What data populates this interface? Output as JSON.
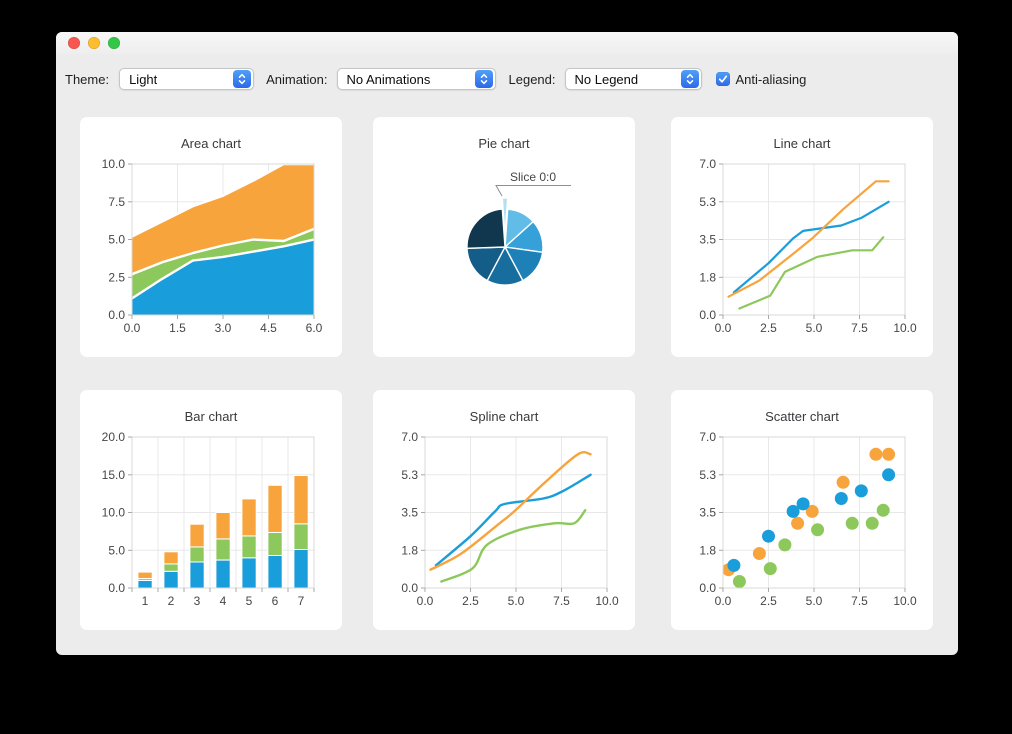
{
  "window": {
    "controls": [
      {
        "name": "close",
        "color": "#f8574f"
      },
      {
        "name": "minimize",
        "color": "#fcbd2f"
      },
      {
        "name": "zoom",
        "color": "#33c748"
      }
    ]
  },
  "toolbar": {
    "theme": {
      "label": "Theme:",
      "value": "Light"
    },
    "animation": {
      "label": "Animation:",
      "value": "No Animations"
    },
    "legend": {
      "label": "Legend:",
      "value": "No Legend"
    },
    "antialiasing": {
      "label": "Anti-aliasing",
      "checked": true
    }
  },
  "palette": {
    "blue": "#1a9ddb",
    "green": "#8dc85c",
    "orange": "#f8a43d",
    "grid": "#e8e8e8",
    "axis_border": "#d9d9d9",
    "tick_mark": "#a9a9a9",
    "label": "#46464a",
    "accent": "#3f87f5"
  },
  "chart_data": [
    {
      "type": "area",
      "title": "Area chart",
      "xlim": [
        0,
        6
      ],
      "ylim": [
        0,
        10
      ],
      "xtick_vals": [
        0,
        1.5,
        3,
        4.5,
        6
      ],
      "xtick_labels": [
        "0.0",
        "1.5",
        "3.0",
        "4.5",
        "6.0"
      ],
      "ytick_vals": [
        0,
        2.5,
        5,
        7.5,
        10
      ],
      "ytick_labels": [
        "0.0",
        "2.5",
        "5.0",
        "7.5",
        "10.0"
      ],
      "x": [
        0,
        1,
        2,
        3,
        4,
        5,
        6
      ],
      "stacked_tops": [
        {
          "name": "blue",
          "values": [
            1.1,
            2.4,
            3.6,
            3.85,
            4.2,
            4.55,
            5.0
          ]
        },
        {
          "name": "green",
          "values": [
            2.7,
            3.5,
            4.1,
            4.6,
            5.0,
            4.9,
            5.7
          ]
        },
        {
          "name": "orange",
          "values": [
            5.2,
            6.2,
            7.2,
            7.9,
            8.9,
            10.0,
            10.0
          ]
        }
      ]
    },
    {
      "type": "pie",
      "title": "Pie chart",
      "label": "Slice 0:0",
      "slices": [
        {
          "start": -4,
          "span": 8,
          "color": "#b7ddf4",
          "exploded": true,
          "label": "Slice 0:0"
        },
        {
          "start": 4,
          "span": 44,
          "color": "#62bce8"
        },
        {
          "start": 48,
          "span": 50,
          "color": "#35a1d8"
        },
        {
          "start": 98,
          "span": 54,
          "color": "#1d80b7"
        },
        {
          "start": 152,
          "span": 56,
          "color": "#176e9e"
        },
        {
          "start": 208,
          "span": 60,
          "color": "#135d88"
        },
        {
          "start": 268,
          "span": 88,
          "color": "#11374f"
        }
      ]
    },
    {
      "type": "line",
      "title": "Line chart",
      "xlim": [
        0,
        10
      ],
      "ylim": [
        0,
        7
      ],
      "xtick_vals": [
        0,
        2.5,
        5,
        7.5,
        10
      ],
      "xtick_labels": [
        "0.0",
        "2.5",
        "5.0",
        "7.5",
        "10.0"
      ],
      "ytick_vals": [
        0,
        1.75,
        3.5,
        5.25,
        7
      ],
      "ytick_labels": [
        "0.0",
        "1.8",
        "3.5",
        "5.3",
        "7.0"
      ],
      "series": [
        {
          "name": "green",
          "points": [
            [
              0.9,
              0.3
            ],
            [
              2.6,
              0.9
            ],
            [
              3.4,
              2.0
            ],
            [
              5.2,
              2.7
            ],
            [
              7.1,
              3.0
            ],
            [
              8.2,
              3.0
            ],
            [
              8.8,
              3.6
            ]
          ]
        },
        {
          "name": "blue",
          "points": [
            [
              0.6,
              1.05
            ],
            [
              2.5,
              2.4
            ],
            [
              3.85,
              3.55
            ],
            [
              4.4,
              3.9
            ],
            [
              6.5,
              4.15
            ],
            [
              7.6,
              4.5
            ],
            [
              9.1,
              5.25
            ]
          ]
        },
        {
          "name": "orange",
          "points": [
            [
              0.3,
              0.85
            ],
            [
              2.0,
              1.6
            ],
            [
              4.1,
              3.0
            ],
            [
              4.9,
              3.55
            ],
            [
              6.6,
              4.9
            ],
            [
              8.4,
              6.2
            ],
            [
              9.1,
              6.2
            ]
          ]
        }
      ]
    },
    {
      "type": "bar",
      "title": "Bar chart",
      "categories": [
        "1",
        "2",
        "3",
        "4",
        "5",
        "6",
        "7"
      ],
      "ylim": [
        0,
        20
      ],
      "ytick_vals": [
        0,
        5,
        10,
        15,
        20
      ],
      "ytick_labels": [
        "0.0",
        "5.0",
        "10.0",
        "15.0",
        "20.0"
      ],
      "series": [
        {
          "name": "blue",
          "values": [
            1.0,
            2.2,
            3.45,
            3.7,
            4.0,
            4.3,
            5.1
          ]
        },
        {
          "name": "green",
          "values": [
            0.25,
            1.0,
            2.0,
            2.8,
            2.9,
            3.05,
            3.4
          ]
        },
        {
          "name": "orange",
          "values": [
            0.85,
            1.6,
            3.0,
            3.5,
            4.9,
            6.25,
            6.4
          ]
        }
      ]
    },
    {
      "type": "spline",
      "title": "Spline chart",
      "xlim": [
        0,
        10
      ],
      "ylim": [
        0,
        7
      ],
      "xtick_vals": [
        0,
        2.5,
        5,
        7.5,
        10
      ],
      "xtick_labels": [
        "0.0",
        "2.5",
        "5.0",
        "7.5",
        "10.0"
      ],
      "ytick_vals": [
        0,
        1.75,
        3.5,
        5.25,
        7
      ],
      "ytick_labels": [
        "0.0",
        "1.8",
        "3.5",
        "5.3",
        "7.0"
      ],
      "series": [
        {
          "name": "green",
          "points": [
            [
              0.9,
              0.3
            ],
            [
              2.6,
              0.9
            ],
            [
              3.4,
              2.0
            ],
            [
              5.2,
              2.7
            ],
            [
              7.1,
              3.0
            ],
            [
              8.2,
              3.0
            ],
            [
              8.8,
              3.6
            ]
          ]
        },
        {
          "name": "blue",
          "points": [
            [
              0.6,
              1.05
            ],
            [
              2.5,
              2.4
            ],
            [
              3.85,
              3.55
            ],
            [
              4.4,
              3.9
            ],
            [
              6.5,
              4.15
            ],
            [
              7.6,
              4.5
            ],
            [
              9.1,
              5.25
            ]
          ]
        },
        {
          "name": "orange",
          "points": [
            [
              0.3,
              0.85
            ],
            [
              2.0,
              1.6
            ],
            [
              4.1,
              3.0
            ],
            [
              4.9,
              3.55
            ],
            [
              6.6,
              4.9
            ],
            [
              8.4,
              6.2
            ],
            [
              9.1,
              6.2
            ]
          ]
        }
      ]
    },
    {
      "type": "scatter",
      "title": "Scatter chart",
      "xlim": [
        0,
        10
      ],
      "ylim": [
        0,
        7
      ],
      "xtick_vals": [
        0,
        2.5,
        5,
        7.5,
        10
      ],
      "xtick_labels": [
        "0.0",
        "2.5",
        "5.0",
        "7.5",
        "10.0"
      ],
      "ytick_vals": [
        0,
        1.75,
        3.5,
        5.25,
        7
      ],
      "ytick_labels": [
        "0.0",
        "1.8",
        "3.5",
        "5.3",
        "7.0"
      ],
      "series": [
        {
          "name": "orange",
          "points": [
            [
              0.3,
              0.85
            ],
            [
              2.0,
              1.6
            ],
            [
              4.1,
              3.0
            ],
            [
              4.9,
              3.55
            ],
            [
              6.6,
              4.9
            ],
            [
              8.4,
              6.2
            ],
            [
              9.1,
              6.2
            ]
          ]
        },
        {
          "name": "green",
          "points": [
            [
              0.9,
              0.3
            ],
            [
              2.6,
              0.9
            ],
            [
              3.4,
              2.0
            ],
            [
              5.2,
              2.7
            ],
            [
              7.1,
              3.0
            ],
            [
              8.2,
              3.0
            ],
            [
              8.8,
              3.6
            ]
          ]
        },
        {
          "name": "blue",
          "points": [
            [
              0.6,
              1.05
            ],
            [
              2.5,
              2.4
            ],
            [
              3.85,
              3.55
            ],
            [
              4.4,
              3.9
            ],
            [
              6.5,
              4.15
            ],
            [
              7.6,
              4.5
            ],
            [
              9.1,
              5.25
            ]
          ]
        }
      ]
    }
  ]
}
